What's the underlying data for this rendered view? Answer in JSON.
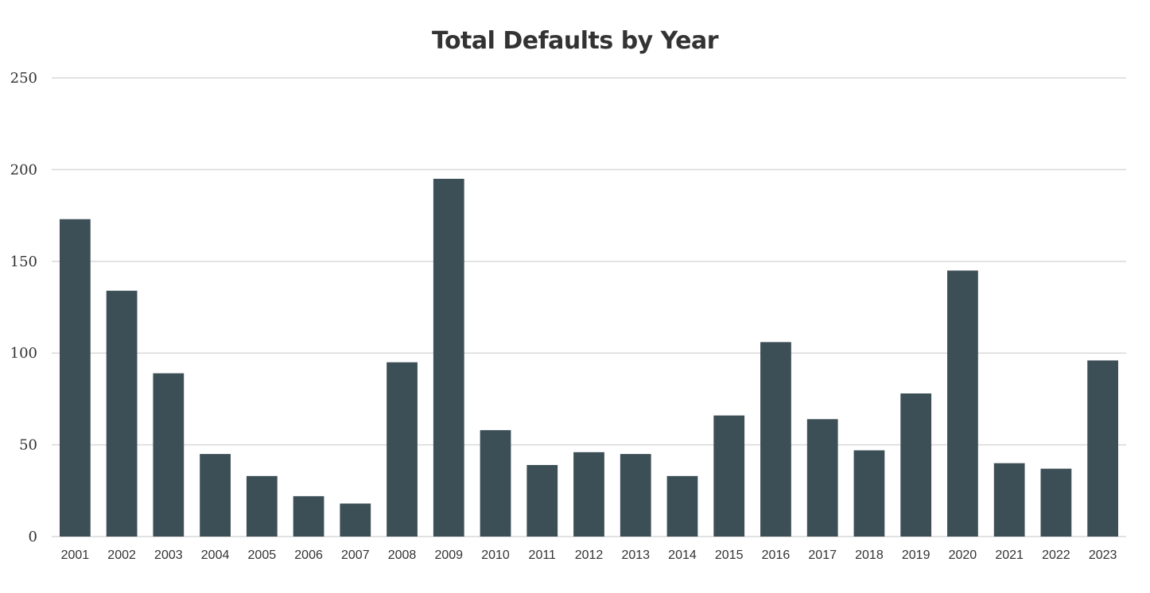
{
  "chart_data": {
    "type": "bar",
    "title": "Total Defaults by Year",
    "xlabel": "",
    "ylabel": "",
    "categories": [
      "2001",
      "2002",
      "2003",
      "2004",
      "2005",
      "2006",
      "2007",
      "2008",
      "2009",
      "2010",
      "2011",
      "2012",
      "2013",
      "2014",
      "2015",
      "2016",
      "2017",
      "2018",
      "2019",
      "2020",
      "2021",
      "2022",
      "2023"
    ],
    "values": [
      173,
      134,
      89,
      45,
      33,
      22,
      18,
      95,
      195,
      58,
      39,
      46,
      45,
      33,
      66,
      106,
      64,
      47,
      78,
      145,
      40,
      37,
      96
    ],
    "ylim": [
      0,
      250
    ],
    "yticks": [
      0,
      50,
      100,
      150,
      200,
      250
    ],
    "grid": true,
    "legend": "none",
    "bar_color": "#3d4f56"
  }
}
